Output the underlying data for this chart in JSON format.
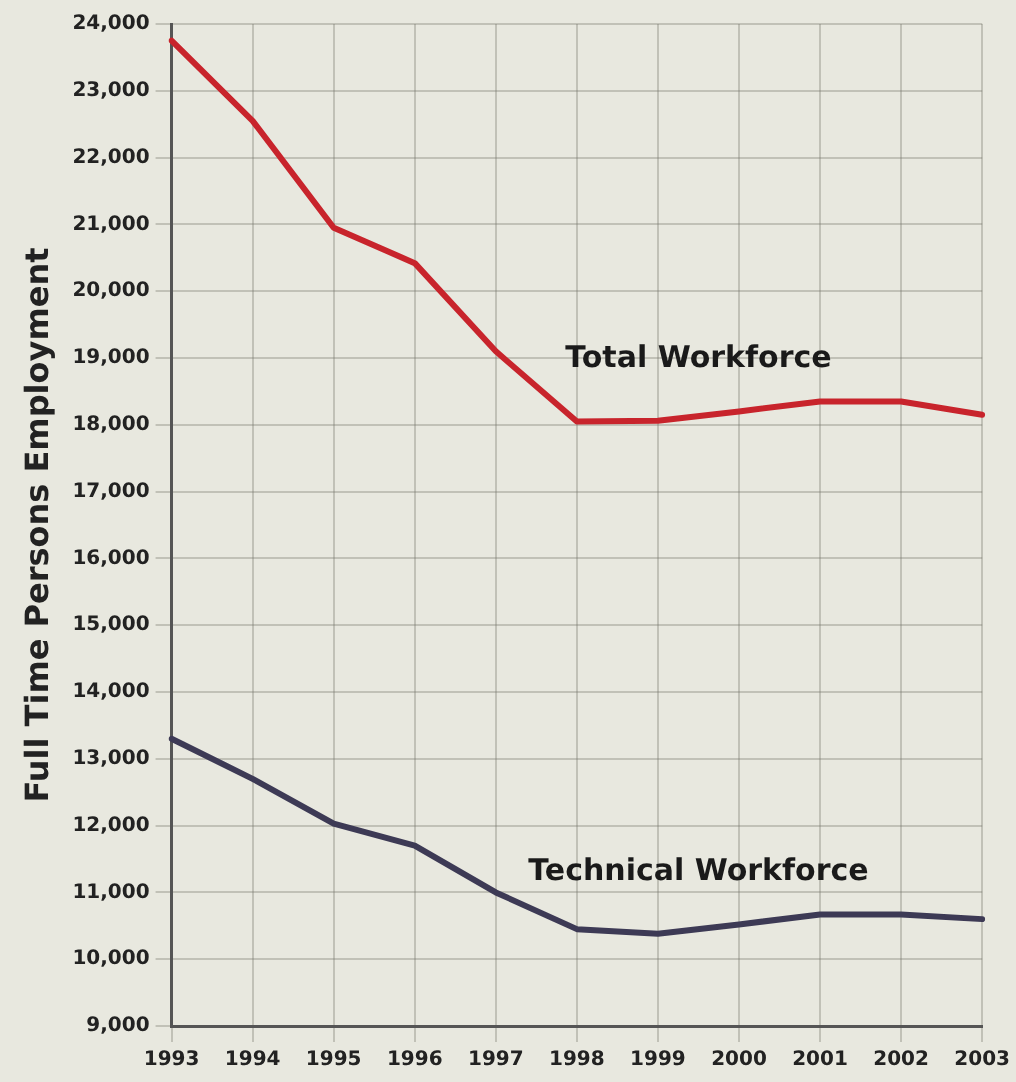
{
  "chart_data": {
    "type": "line",
    "ylabel": "Full Time Persons Employment",
    "categories": [
      "1993",
      "1994",
      "1995",
      "1996",
      "1997",
      "1998",
      "1999",
      "2000",
      "2001",
      "2002",
      "2003"
    ],
    "series": [
      {
        "name": "Total Workforce",
        "color": "#c8242c",
        "values": [
          23750,
          22550,
          20950,
          20420,
          19100,
          18050,
          18060,
          18200,
          18350,
          18350,
          18150
        ]
      },
      {
        "name": "Technical Workforce",
        "color": "#3d3a55",
        "values": [
          13300,
          12700,
          12030,
          11700,
          11000,
          10450,
          10380,
          10520,
          10670,
          10670,
          10600
        ]
      }
    ],
    "ylim": [
      9000,
      24000
    ],
    "yticks": [
      {
        "value": 9000,
        "label": "9,000"
      },
      {
        "value": 10000,
        "label": "10,000"
      },
      {
        "value": 11000,
        "label": "11,000"
      },
      {
        "value": 12000,
        "label": "12,000"
      },
      {
        "value": 13000,
        "label": "13,000"
      },
      {
        "value": 14000,
        "label": "14,000"
      },
      {
        "value": 15000,
        "label": "15,000"
      },
      {
        "value": 16000,
        "label": "16,000"
      },
      {
        "value": 17000,
        "label": "17,000"
      },
      {
        "value": 18000,
        "label": "18,000"
      },
      {
        "value": 19000,
        "label": "19,000"
      },
      {
        "value": 20000,
        "label": "20,000"
      },
      {
        "value": 21000,
        "label": "21,000"
      },
      {
        "value": 22000,
        "label": "22,000"
      },
      {
        "value": 23000,
        "label": "23,000"
      },
      {
        "value": 24000,
        "label": "24,000"
      }
    ],
    "grid": true,
    "legend": false,
    "marker": "none",
    "line_style": "solid"
  }
}
